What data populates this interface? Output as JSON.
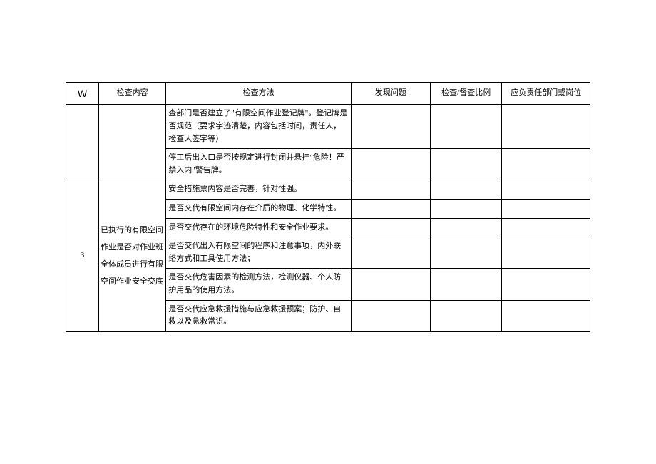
{
  "table": {
    "headers": {
      "num": "W",
      "content": "检查内容",
      "method": "检查方法",
      "problem": "发现问题",
      "ratio": "检查/督查比例",
      "dept": "应负责任部门或岗位"
    },
    "section1": {
      "method1": "查部门是否建立了\"有限空间作业登记牌\"。登记牌是否规范（要求字迹清楚，内容包括时间，责任人，检查人签字等）",
      "method2": "停工后出入口是否按规定进行封闭并悬挂\"危险！严禁入内\"警告牌。"
    },
    "section2": {
      "num": "3",
      "content": "已执行的有限空间作业是否对作业班全体成员进行有限空间作业安全交底",
      "method1": "安全措施票内容是否完善，针对性强。",
      "method2": "是否交代有限空间内存在介质的物理、化学特性。",
      "method3": "是否交代存在的环境危险特性和安全作业要求。",
      "method4": "是否交代出入有限空间的程序和注意事项，内外联络方式和工具使用方法；",
      "method5": "是否交代危害因素的检测方法，检测仪器、个人防护用品的使用方法。",
      "method6": "是否交代应急救援措施与应急救援预案；防护、自救以及急救常识。"
    }
  }
}
